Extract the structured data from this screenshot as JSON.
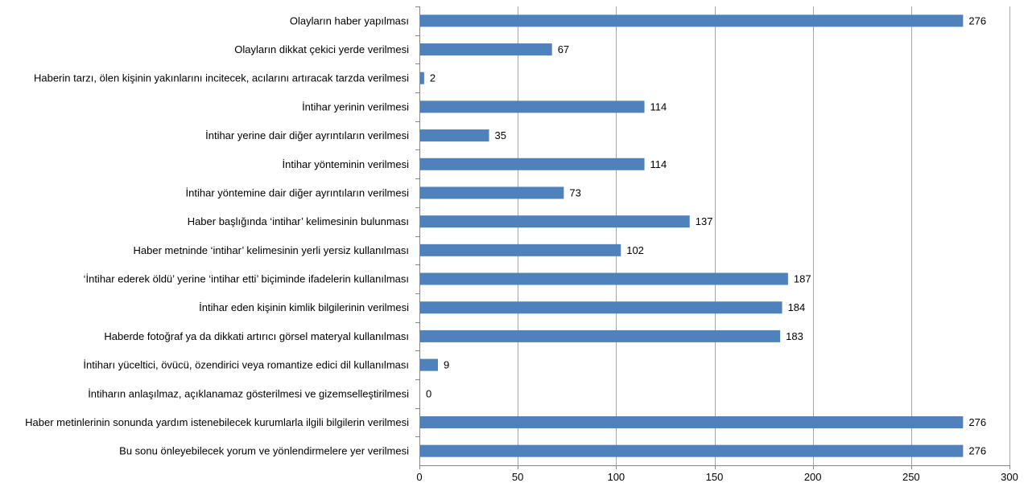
{
  "chart_data": {
    "type": "bar",
    "orientation": "horizontal",
    "title": "",
    "xlabel": "",
    "ylabel": "",
    "xlim": [
      0,
      300
    ],
    "xticks": [
      0,
      50,
      100,
      150,
      200,
      250,
      300
    ],
    "grid": "vertical",
    "legend": "none",
    "bar_color": "#4f81bd",
    "gridline_color": "#a6a6a6",
    "categories": [
      "Olayların haber yapılması",
      "Olayların dikkat çekici yerde verilmesi",
      "Haberin tarzı, ölen kişinin yakınlarını incitecek, acılarını artıracak tarzda verilmesi",
      "İntihar yerinin verilmesi",
      "İntihar yerine dair diğer ayrıntıların verilmesi",
      "İntihar yönteminin verilmesi",
      "İntihar yöntemine dair diğer ayrıntıların verilmesi",
      "Haber başlığında ‘intihar’ kelimesinin bulunması",
      "Haber metninde ‘intihar’ kelimesinin yerli yersiz kullanılması",
      "‘İntihar ederek öldü’ yerine ‘intihar etti’ biçiminde ifadelerin kullanılması",
      "İntihar eden kişinin kimlik bilgilerinin verilmesi",
      "Haberde fotoğraf ya da dikkati artırıcı görsel materyal kullanılması",
      "İntiharı yüceltici, övücü, özendirici veya romantize edici dil kullanılması",
      "İntiharın anlaşılmaz, açıklanamaz gösterilmesi ve gizemselleştirilmesi",
      "Haber metinlerinin sonunda yardım istenebilecek kurumlarla ilgili bilgilerin verilmesi",
      "Bu sonu önleyebilecek yorum ve yönlendirmelere yer verilmesi"
    ],
    "values": [
      276,
      67,
      2,
      114,
      35,
      114,
      73,
      137,
      102,
      187,
      184,
      183,
      9,
      0,
      276,
      276
    ]
  }
}
